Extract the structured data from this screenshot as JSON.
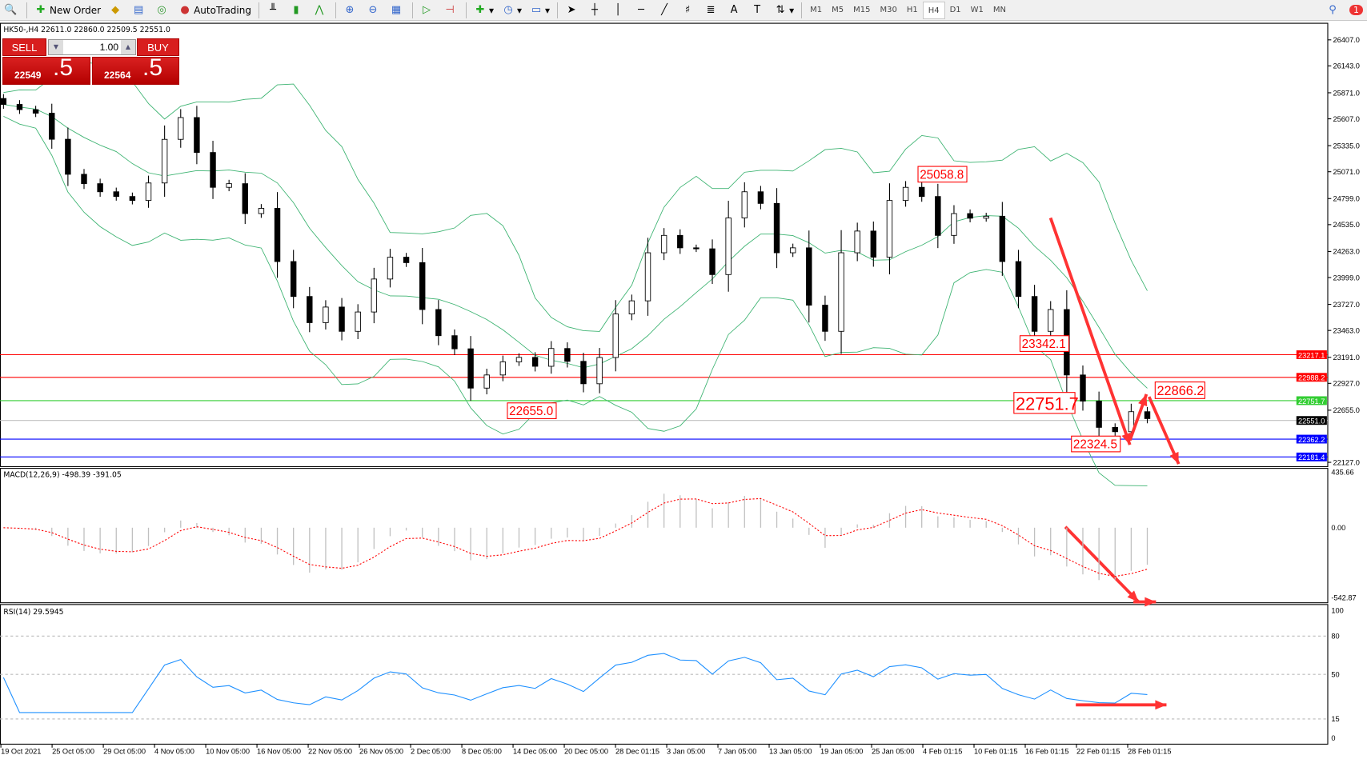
{
  "toolbar": {
    "new_order": "New Order",
    "autotrading": "AutoTrading",
    "timeframes": [
      "M1",
      "M5",
      "M15",
      "M30",
      "H1",
      "H4",
      "D1",
      "W1",
      "MN"
    ],
    "active_timeframe": "H4",
    "notifications": "1"
  },
  "chart": {
    "header": "HK50-,H4  22611.0 22860.0 22509.5 22551.0",
    "trade_panel": {
      "sell": "SELL",
      "buy": "BUY",
      "lot": "1.00",
      "sell_price": "22549",
      "sell_frac": ".5",
      "buy_price": "22564",
      "buy_frac": ".5"
    },
    "price_axis": [
      "26407.0",
      "26143.0",
      "25871.0",
      "25607.0",
      "25335.0",
      "25071.0",
      "24799.0",
      "24535.0",
      "24263.0",
      "23999.0",
      "23727.0",
      "23463.0",
      "23191.0",
      "22927.0",
      "22655.0",
      "22127.0"
    ],
    "hlines": [
      {
        "price": 23217.1,
        "label": "23217.1",
        "color": "#ff0000"
      },
      {
        "price": 22988.2,
        "label": "22988.2",
        "color": "#ff0000"
      },
      {
        "price": 22751.7,
        "label": "22751.7",
        "color": "#32cd32"
      },
      {
        "price": 22551.0,
        "label": "22551.0",
        "color": "#000000",
        "line": "#c0c0c0"
      },
      {
        "price": 22362.2,
        "label": "22362.2",
        "color": "#0000ff"
      },
      {
        "price": 22181.4,
        "label": "22181.4",
        "color": "#0000ff"
      }
    ],
    "annotations": [
      "25058.8",
      "22655.0",
      "23342.1",
      "22751.7",
      "22324.5",
      "22866.2"
    ],
    "closes": [
      25753,
      25700,
      25664,
      25400,
      25045,
      24950,
      24868,
      24820,
      24780,
      24957,
      25399,
      25620,
      25266,
      24913,
      24950,
      24647,
      24700,
      24161,
      23807,
      23542,
      23700,
      23454,
      23650,
      23984,
      24205,
      24150,
      23675,
      23410,
      23277,
      22879,
      23012,
      23145,
      23190,
      23100,
      23280,
      23150,
      22923,
      23189,
      23630,
      23763,
      24250,
      24426,
      24300,
      24290,
      24029,
      24603,
      24868,
      24750,
      24250,
      24300,
      23719,
      23454,
      24250,
      24470,
      24205,
      24780,
      24913,
      24820,
      24426,
      24647,
      24600,
      24620,
      24161,
      23807,
      23454,
      23675,
      23012,
      22747,
      22481,
      22437,
      22640,
      22570
    ],
    "macd": {
      "label": "MACD(12,26,9) -498.39 -391.05",
      "axis": [
        "435.66",
        "0.00",
        "-542.87"
      ]
    },
    "rsi": {
      "label": "RSI(14) 29.5945",
      "axis": [
        "100",
        "80",
        "50",
        "15",
        "0"
      ]
    },
    "dates": [
      "19 Oct 2021",
      "25 Oct 05:00",
      "29 Oct 05:00",
      "4 Nov 05:00",
      "10 Nov 05:00",
      "16 Nov 05:00",
      "22 Nov 05:00",
      "26 Nov 05:00",
      "2 Dec 05:00",
      "8 Dec 05:00",
      "14 Dec 05:00",
      "20 Dec 05:00",
      "28 Dec 01:15",
      "3 Jan 05:00",
      "7 Jan 05:00",
      "13 Jan 05:00",
      "19 Jan 05:00",
      "25 Jan 05:00",
      "4 Feb 01:15",
      "10 Feb 01:15",
      "16 Feb 01:15",
      "22 Feb 01:15",
      "28 Feb 01:15"
    ],
    "colors": {
      "band": "#3cb371",
      "bear": "#000000",
      "bull": "#ffffff",
      "arrow": "#ff3333",
      "macd_signal": "#ff0000",
      "macd_hist": "#c0c0c0",
      "rsi": "#1e90ff"
    }
  }
}
